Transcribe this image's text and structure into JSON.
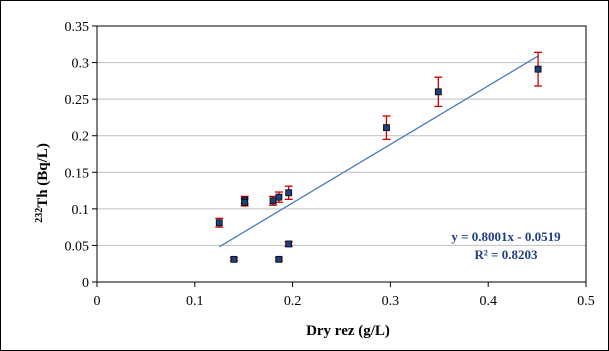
{
  "chart_data": {
    "type": "scatter",
    "xlabel": "Dry rez (g/L)",
    "ylabel_sup": "232",
    "ylabel_main": "Th (Bq/L)",
    "xlim": [
      0,
      0.5
    ],
    "ylim": [
      0,
      0.35
    ],
    "x_ticks": [
      0,
      0.1,
      0.2,
      0.3,
      0.4,
      0.5
    ],
    "x_tick_labels": [
      "0",
      "0.1",
      "0.2",
      "0.3",
      "0.4",
      "0.5"
    ],
    "y_ticks": [
      0,
      0.05,
      0.1,
      0.15,
      0.2,
      0.25,
      0.3,
      0.35
    ],
    "y_tick_labels": [
      "0",
      "0.05",
      "0.1",
      "0.15",
      "0.2",
      "0.25",
      "0.3",
      "0.35"
    ],
    "grid": "horizontal",
    "points": [
      {
        "x": 0.125,
        "y": 0.081,
        "err": 0.006
      },
      {
        "x": 0.14,
        "y": 0.031,
        "err": 0.002
      },
      {
        "x": 0.151,
        "y": 0.112,
        "err": 0.005
      },
      {
        "x": 0.151,
        "y": 0.109,
        "err": 0.005
      },
      {
        "x": 0.18,
        "y": 0.111,
        "err": 0.006
      },
      {
        "x": 0.186,
        "y": 0.116,
        "err": 0.007
      },
      {
        "x": 0.186,
        "y": 0.031,
        "err": 0.002
      },
      {
        "x": 0.196,
        "y": 0.052,
        "err": 0.003
      },
      {
        "x": 0.196,
        "y": 0.122,
        "err": 0.009
      },
      {
        "x": 0.296,
        "y": 0.211,
        "err": 0.016
      },
      {
        "x": 0.349,
        "y": 0.26,
        "err": 0.02
      },
      {
        "x": 0.451,
        "y": 0.291,
        "err": 0.023
      }
    ],
    "trendline": {
      "slope": 0.8001,
      "intercept": -0.0519,
      "x_range": [
        0.125,
        0.451
      ]
    },
    "equation_line1": "y = 0.8001x - 0.0519",
    "equation_line2": "R² = 0.8203",
    "colors": {
      "marker_fill": "#1f3f7f",
      "marker_edge": "#000000",
      "error_bar": "#cc0000",
      "trendline": "#4a7ab8",
      "grid": "#bfbfbf",
      "frame": "#000000",
      "equation": "#1f3f7f"
    }
  }
}
